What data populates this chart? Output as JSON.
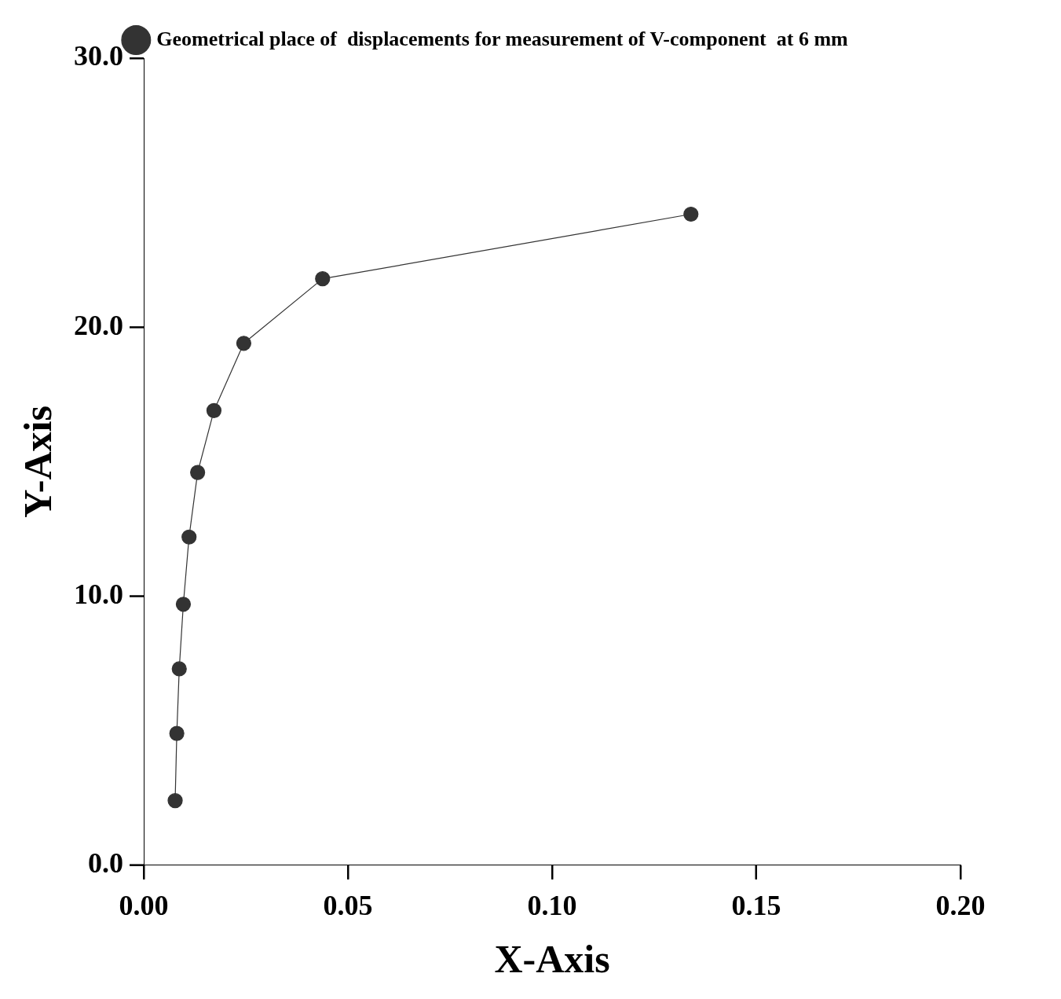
{
  "chart_data": {
    "type": "line",
    "xlabel": "X-Axis",
    "ylabel": "Y-Axis",
    "series": [
      {
        "name": "Geometrical place of  displacements for measurement of V-component  at 6 mm",
        "color": "#333333",
        "x": [
          0.0077,
          0.0081,
          0.0087,
          0.0097,
          0.0111,
          0.0132,
          0.0172,
          0.0245,
          0.0438,
          0.134
        ],
        "values": [
          2.4,
          4.9,
          7.3,
          9.7,
          12.2,
          14.6,
          16.9,
          19.4,
          21.8,
          24.2
        ]
      }
    ],
    "xlim": [
      0,
      0.2
    ],
    "ylim": [
      0,
      30
    ],
    "xticks": [
      {
        "value": 0,
        "label": "0.00"
      },
      {
        "value": 0.05,
        "label": "0.05"
      },
      {
        "value": 0.1,
        "label": "0.10"
      },
      {
        "value": 0.15,
        "label": "0.15"
      },
      {
        "value": 0.2,
        "label": "0.20"
      }
    ],
    "yticks": [
      {
        "value": 0,
        "label": "0.0"
      },
      {
        "value": 10,
        "label": "10.0"
      },
      {
        "value": 20,
        "label": "20.0"
      },
      {
        "value": 30,
        "label": "30.0"
      }
    ],
    "grid": false,
    "legend": "top",
    "marker": "circle",
    "line_style": "solid"
  }
}
